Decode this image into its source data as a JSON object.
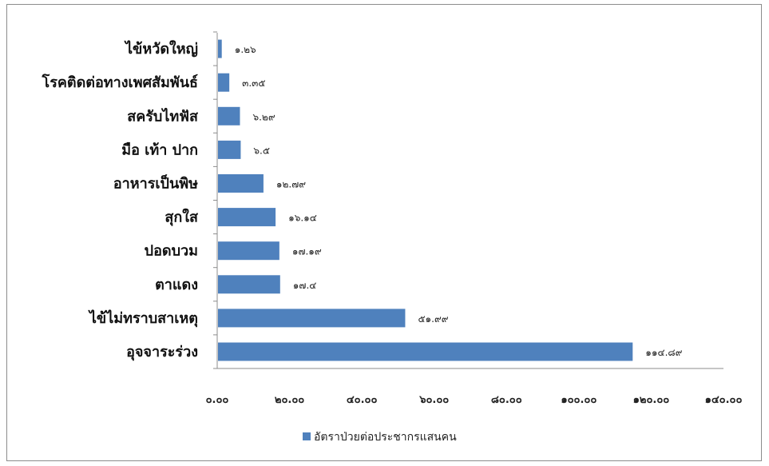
{
  "chart_data": {
    "type": "bar",
    "orientation": "horizontal",
    "categories": [
      "อุจจาระร่วง",
      "ไข้ไม่ทราบสาเหตุ",
      "ตาแดง",
      "ปอดบวม",
      "สุกใส",
      "อาหารเป็นพิษ",
      "มือ เท้า ปาก",
      "สครับไทฟัส",
      "โรคติดต่อทางเพศสัมพันธ์",
      "ไข้หวัดใหญ่"
    ],
    "series": [
      {
        "name": "อัตราป่วยต่อประชากรแสนคน",
        "values": [
          114.89,
          51.99,
          17.4,
          17.19,
          16.14,
          12.79,
          6.5,
          6.29,
          3.35,
          1.26
        ],
        "labels": [
          "๑๑๔.๘๙",
          "๕๑.๙๙",
          "๑๗.๔",
          "๑๗.๑๙",
          "๑๖.๑๔",
          "๑๒.๗๙",
          "๖.๕",
          "๖.๒๙",
          "๓.๓๕",
          "๑.๒๖"
        ],
        "color": "#4f81bd"
      }
    ],
    "xlim": [
      0,
      140
    ],
    "xticks": [
      0,
      20,
      40,
      60,
      80,
      100,
      120,
      140
    ],
    "xtick_labels": [
      "๐.๐๐",
      "๒๐.๐๐",
      "๔๐.๐๐",
      "๖๐.๐๐",
      "๘๐.๐๐",
      "๑๐๐.๐๐",
      "๑๒๐.๐๐",
      "๑๔๐.๐๐"
    ],
    "grid": false,
    "legend_position": "bottom",
    "title": "",
    "xlabel": "",
    "ylabel": ""
  }
}
